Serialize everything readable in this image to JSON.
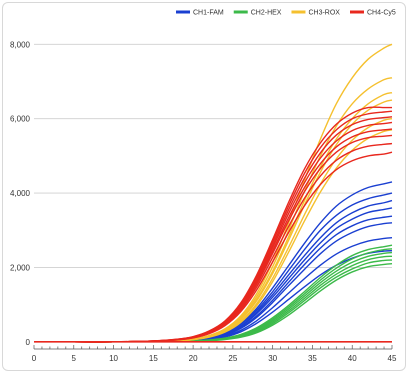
{
  "chart_data": {
    "type": "line",
    "title": "",
    "xlabel": "",
    "ylabel": "",
    "xlim": [
      0,
      45
    ],
    "ylim": [
      -300,
      8600
    ],
    "x_ticks": [
      0,
      5,
      10,
      15,
      20,
      25,
      30,
      35,
      40,
      45
    ],
    "x_tick_labels": [
      "0",
      "5",
      "10",
      "15",
      "20",
      "25",
      "30",
      "35",
      "40",
      "45"
    ],
    "y_ticks": [
      0,
      2000,
      4000,
      6000,
      8000
    ],
    "y_tick_labels": [
      "0",
      "2,000",
      "4,000",
      "6,000",
      "8,000"
    ],
    "grid": "horizontal",
    "legend_position": "top-right",
    "x": [
      0,
      5,
      10,
      15,
      18,
      20,
      22,
      24,
      26,
      28,
      30,
      32,
      34,
      36,
      38,
      40,
      42,
      44,
      45
    ],
    "series": [
      {
        "name": "CH1-FAM",
        "color": "#1a3fd1",
        "curves": [
          [
            0,
            0,
            0,
            10,
            30,
            60,
            120,
            250,
            500,
            900,
            1450,
            2050,
            2650,
            3200,
            3650,
            3950,
            4150,
            4250,
            4300
          ],
          [
            0,
            0,
            0,
            10,
            30,
            55,
            110,
            230,
            470,
            850,
            1350,
            1920,
            2480,
            3000,
            3400,
            3680,
            3850,
            3950,
            4000
          ],
          [
            0,
            0,
            0,
            10,
            25,
            50,
            100,
            210,
            430,
            800,
            1270,
            1800,
            2320,
            2800,
            3200,
            3470,
            3650,
            3740,
            3800
          ],
          [
            0,
            0,
            0,
            8,
            22,
            45,
            95,
            200,
            410,
            760,
            1200,
            1700,
            2200,
            2660,
            3050,
            3300,
            3480,
            3560,
            3600
          ],
          [
            0,
            0,
            0,
            8,
            20,
            40,
            85,
            180,
            380,
            700,
            1120,
            1600,
            2080,
            2520,
            2880,
            3120,
            3280,
            3350,
            3380
          ],
          [
            0,
            0,
            0,
            7,
            18,
            38,
            80,
            170,
            360,
            660,
            1060,
            1510,
            1950,
            2370,
            2710,
            2940,
            3100,
            3180,
            3200
          ],
          [
            0,
            0,
            0,
            6,
            15,
            32,
            70,
            150,
            310,
            570,
            920,
            1310,
            1700,
            2060,
            2360,
            2570,
            2710,
            2780,
            2800
          ],
          [
            0,
            0,
            0,
            5,
            13,
            28,
            60,
            130,
            270,
            500,
            800,
            1140,
            1480,
            1800,
            2060,
            2250,
            2380,
            2440,
            2450
          ]
        ]
      },
      {
        "name": "CH2-HEX",
        "color": "#3cba4a",
        "curves": [
          [
            0,
            0,
            0,
            5,
            12,
            25,
            50,
            100,
            200,
            380,
            650,
            980,
            1350,
            1730,
            2060,
            2320,
            2480,
            2560,
            2600
          ],
          [
            0,
            0,
            0,
            5,
            11,
            22,
            45,
            92,
            185,
            350,
            610,
            930,
            1290,
            1660,
            1980,
            2230,
            2390,
            2480,
            2500
          ],
          [
            0,
            0,
            0,
            4,
            10,
            20,
            40,
            85,
            170,
            320,
            570,
            880,
            1230,
            1590,
            1900,
            2140,
            2300,
            2380,
            2400
          ],
          [
            0,
            0,
            0,
            4,
            9,
            18,
            36,
            78,
            155,
            295,
            530,
            830,
            1170,
            1520,
            1820,
            2050,
            2210,
            2290,
            2300
          ],
          [
            0,
            0,
            0,
            3,
            8,
            16,
            32,
            70,
            140,
            270,
            490,
            780,
            1110,
            1450,
            1740,
            1960,
            2120,
            2190,
            2200
          ],
          [
            0,
            0,
            0,
            3,
            7,
            14,
            28,
            62,
            125,
            245,
            450,
            720,
            1040,
            1370,
            1660,
            1880,
            2020,
            2080,
            2100
          ]
        ]
      },
      {
        "name": "CH3-ROX",
        "color": "#f5c02e",
        "curves": [
          [
            0,
            0,
            0,
            15,
            40,
            80,
            170,
            350,
            700,
            1300,
            2150,
            3200,
            4350,
            5450,
            6400,
            7100,
            7600,
            7900,
            8000
          ],
          [
            0,
            0,
            0,
            14,
            38,
            75,
            160,
            330,
            660,
            1220,
            2020,
            3000,
            4050,
            5000,
            5800,
            6400,
            6800,
            7050,
            7100
          ],
          [
            0,
            0,
            0,
            13,
            35,
            70,
            150,
            310,
            620,
            1150,
            1900,
            2820,
            3800,
            4700,
            5450,
            6000,
            6400,
            6650,
            6700
          ],
          [
            0,
            0,
            0,
            12,
            33,
            68,
            145,
            300,
            600,
            1110,
            1840,
            2730,
            3680,
            4560,
            5300,
            5850,
            6230,
            6450,
            6500
          ],
          [
            0,
            0,
            0,
            11,
            30,
            62,
            132,
            275,
            555,
            1030,
            1710,
            2540,
            3420,
            4240,
            4920,
            5420,
            5760,
            5960,
            6000
          ],
          [
            0,
            0,
            0,
            10,
            28,
            58,
            124,
            260,
            525,
            975,
            1620,
            2410,
            3250,
            4030,
            4670,
            5150,
            5470,
            5660,
            5700
          ]
        ]
      },
      {
        "name": "CH4-Cy5",
        "color": "#e8281e",
        "curves": [
          [
            0,
            0,
            0,
            25,
            70,
            140,
            290,
            560,
            1050,
            1800,
            2750,
            3750,
            4650,
            5350,
            5850,
            6150,
            6300,
            6300,
            6300
          ],
          [
            0,
            0,
            0,
            24,
            68,
            135,
            280,
            545,
            1020,
            1750,
            2680,
            3650,
            4530,
            5220,
            5700,
            6000,
            6130,
            6180,
            6200
          ],
          [
            0,
            0,
            0,
            23,
            65,
            130,
            270,
            530,
            990,
            1700,
            2600,
            3550,
            4400,
            5080,
            5560,
            5840,
            5980,
            6030,
            6050
          ],
          [
            0,
            0,
            0,
            22,
            62,
            125,
            260,
            510,
            960,
            1650,
            2530,
            3450,
            4280,
            4940,
            5400,
            5680,
            5820,
            5870,
            5900
          ],
          [
            0,
            0,
            0,
            21,
            60,
            120,
            250,
            495,
            930,
            1600,
            2450,
            3340,
            4150,
            4790,
            5240,
            5510,
            5650,
            5700,
            5720
          ],
          [
            0,
            0,
            0,
            20,
            58,
            115,
            240,
            480,
            900,
            1550,
            2380,
            3250,
            4040,
            4660,
            5100,
            5360,
            5490,
            5530,
            5550
          ],
          [
            0,
            0,
            0,
            19,
            55,
            110,
            230,
            460,
            860,
            1480,
            2270,
            3100,
            3860,
            4460,
            4880,
            5130,
            5260,
            5310,
            5330
          ],
          [
            0,
            0,
            0,
            18,
            52,
            105,
            218,
            435,
            815,
            1400,
            2150,
            2940,
            3660,
            4230,
            4630,
            4870,
            5000,
            5050,
            5100
          ]
        ],
        "flat_lines": 1
      }
    ]
  }
}
